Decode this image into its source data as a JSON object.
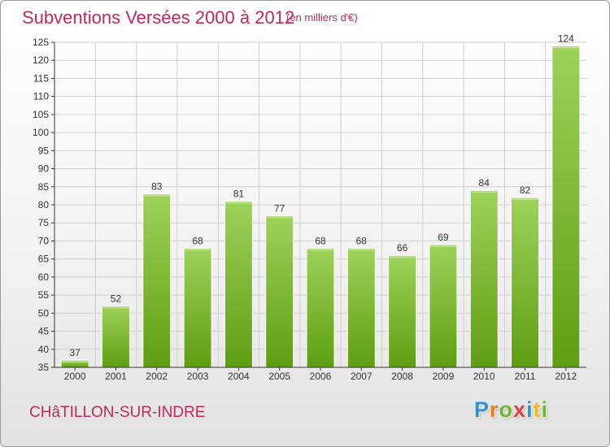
{
  "header": {
    "title": "Subventions Versées 2000 à 2012",
    "subtitle": "(en milliers d'€)"
  },
  "footer": {
    "city": "CHâTILLON-SUR-INDRE",
    "logo_letters": [
      "P",
      "r",
      "o",
      "x",
      "i",
      "t",
      "i"
    ],
    "logo_colors": [
      "#2f8fd8",
      "#f07b1c",
      "#6ab82c",
      "#e83e3e",
      "#2f8fd8",
      "#f7b51c",
      "#6ab82c"
    ]
  },
  "colors": {
    "bar_top": "#9ed25a",
    "bar_bottom": "#5e9e12",
    "grid": "#cfcfcf",
    "axis": "#333333",
    "title": "#c0285f"
  },
  "chart_data": {
    "type": "bar",
    "title": "Subventions Versées 2000 à 2012",
    "subtitle": "(en milliers d'€)",
    "categories": [
      "2000",
      "2001",
      "2002",
      "2003",
      "2004",
      "2005",
      "2006",
      "2007",
      "2008",
      "2009",
      "2010",
      "2011",
      "2012"
    ],
    "values": [
      37,
      52,
      83,
      68,
      81,
      77,
      68,
      68,
      66,
      69,
      84,
      82,
      124
    ],
    "ylim": [
      35,
      125
    ],
    "yticks": [
      35,
      40,
      45,
      50,
      55,
      60,
      65,
      70,
      75,
      80,
      85,
      90,
      95,
      100,
      105,
      110,
      115,
      120,
      125
    ],
    "grid": true,
    "legend": "none",
    "data_labels": true
  }
}
